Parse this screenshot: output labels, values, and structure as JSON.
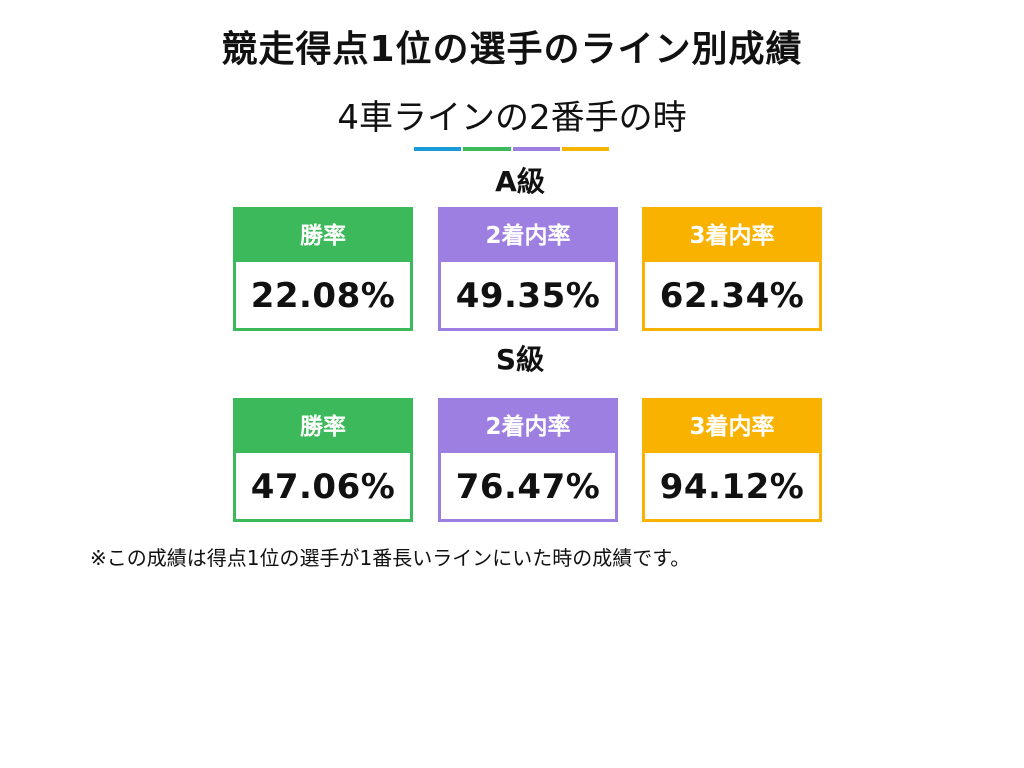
{
  "title": "競走得点1位の選手のライン別成績",
  "subtitle": "4車ラインの2番手の時",
  "underline_colors": [
    "#1a9ad6",
    "#3cb95a",
    "#9c7fe0",
    "#f5b400"
  ],
  "colors": {
    "win": "#3cb95a",
    "second": "#9c7fe0",
    "third": "#f9b200"
  },
  "grades": [
    {
      "label": "A級",
      "stats": [
        {
          "label": "勝率",
          "value": "22.08%"
        },
        {
          "label": "2着内率",
          "value": "49.35%"
        },
        {
          "label": "3着内率",
          "value": "62.34%"
        }
      ]
    },
    {
      "label": "S級",
      "stats": [
        {
          "label": "勝率",
          "value": "47.06%"
        },
        {
          "label": "2着内率",
          "value": "76.47%"
        },
        {
          "label": "3着内率",
          "value": "94.12%"
        }
      ]
    }
  ],
  "note": "※この成績は得点1位の選手が1番長いラインにいた時の成績です。"
}
